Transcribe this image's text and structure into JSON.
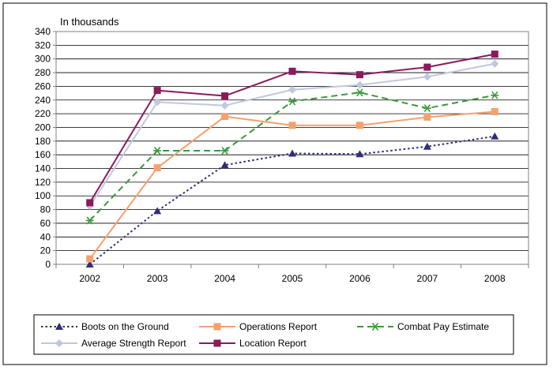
{
  "chart_data": {
    "type": "line",
    "ylabel": "In thousands",
    "categories": [
      "2002",
      "2003",
      "2004",
      "2005",
      "2006",
      "2007",
      "2008"
    ],
    "ylim": [
      0,
      340
    ],
    "ytick_step": 20,
    "grid": true,
    "legend_position": "bottom",
    "series": [
      {
        "name": "Boots on the Ground",
        "values": [
          0,
          78,
          145,
          162,
          161,
          172,
          187
        ],
        "color": "#2E2E7A",
        "dash": "dotted",
        "marker": "triangle"
      },
      {
        "name": "Operations Report",
        "values": [
          8,
          141,
          216,
          203,
          203,
          215,
          223
        ],
        "color": "#F5A06E",
        "dash": "solid",
        "marker": "square"
      },
      {
        "name": "Combat Pay Estimate",
        "values": [
          64,
          166,
          166,
          238,
          251,
          228,
          247
        ],
        "color": "#3A9A3A",
        "dash": "dashed",
        "marker": "asterisk"
      },
      {
        "name": "Average Strength Report",
        "values": [
          85,
          237,
          232,
          255,
          262,
          274,
          293
        ],
        "color": "#C0C8E0",
        "dash": "solid",
        "marker": "diamond"
      },
      {
        "name": "Location Report",
        "values": [
          90,
          254,
          246,
          282,
          277,
          288,
          307
        ],
        "color": "#8B1A5C",
        "dash": "solid",
        "marker": "square"
      }
    ]
  }
}
